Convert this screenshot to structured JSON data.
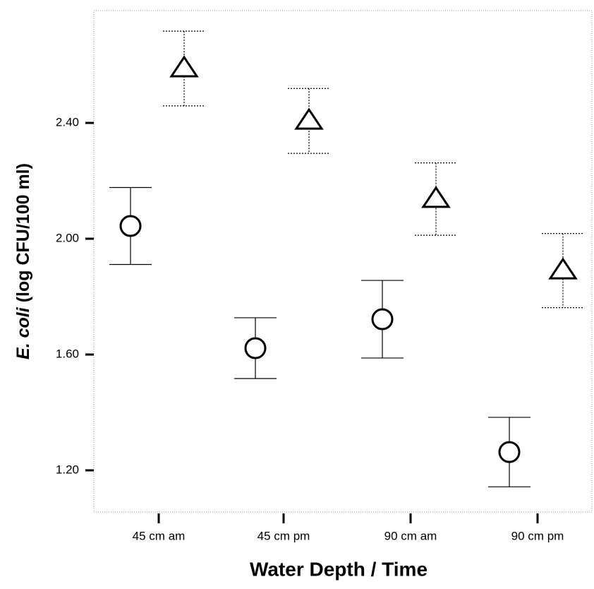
{
  "chart_data": {
    "type": "errorbar_scatter",
    "xlabel": "Water Depth / Time",
    "ylabel": [
      "E. coli",
      "(log CFU/100 ml)"
    ],
    "categories": [
      "45 cm am",
      "45 cm pm",
      "90 cm am",
      "90 cm pm"
    ],
    "series": [
      {
        "marker": "circle",
        "errorbar_style": "solid",
        "color": "#000000",
        "values": [
          2.044,
          1.622,
          1.722,
          1.263
        ],
        "errors": [
          0.133,
          0.105,
          0.134,
          0.12
        ]
      },
      {
        "marker": "triangle",
        "errorbar_style": "dotted",
        "color": "#000000",
        "values": [
          2.588,
          2.407,
          2.137,
          1.89
        ],
        "errors": [
          0.129,
          0.112,
          0.125,
          0.128
        ]
      }
    ],
    "ylim": [
      1.056,
      2.788
    ],
    "yticks": [
      {
        "value": 1.2,
        "label": "1.20"
      },
      {
        "value": 1.6,
        "label": "1.60"
      },
      {
        "value": 2.0,
        "label": "2.00"
      },
      {
        "value": 2.4,
        "label": "2.40"
      }
    ]
  }
}
